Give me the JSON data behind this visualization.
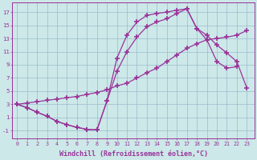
{
  "bg_color": "#cce8e8",
  "grid_color": "#99bbcc",
  "line_color": "#993399",
  "marker": "+",
  "markersize": 4,
  "markeredgewidth": 1.2,
  "linewidth": 0.9,
  "xlabel": "Windchill (Refroidissement éolien,°C)",
  "xlabel_fontsize": 6.0,
  "xtick_fontsize": 4.8,
  "ytick_fontsize": 5.2,
  "yticks": [
    -1,
    1,
    3,
    5,
    7,
    9,
    11,
    13,
    15,
    17
  ],
  "xticks": [
    0,
    1,
    2,
    3,
    4,
    5,
    6,
    7,
    8,
    9,
    10,
    11,
    12,
    13,
    14,
    15,
    16,
    17,
    18,
    19,
    20,
    21,
    22,
    23
  ],
  "xlim": [
    -0.5,
    23.8
  ],
  "ylim": [
    -2.2,
    18.5
  ],
  "line1_x": [
    0,
    1,
    2,
    3,
    4,
    5,
    6,
    7,
    8,
    9,
    10,
    11,
    12,
    13,
    14,
    15,
    16,
    17,
    18,
    19,
    20,
    21,
    22,
    23
  ],
  "line1_y": [
    3.0,
    3.2,
    3.4,
    3.6,
    3.8,
    4.0,
    4.2,
    4.5,
    4.8,
    5.2,
    5.8,
    6.2,
    7.0,
    7.8,
    8.5,
    9.5,
    10.5,
    11.5,
    12.2,
    12.8,
    13.0,
    13.2,
    13.5,
    14.2
  ],
  "line2_x": [
    0,
    1,
    2,
    3,
    4,
    5,
    6,
    7,
    8,
    9,
    10,
    11,
    12,
    13,
    14,
    15,
    16,
    17,
    18,
    19,
    20,
    21,
    22
  ],
  "line2_y": [
    3.0,
    2.5,
    1.8,
    1.2,
    0.4,
    -0.1,
    -0.5,
    -0.8,
    -0.9,
    3.5,
    10.0,
    13.5,
    15.5,
    16.5,
    16.8,
    17.0,
    17.3,
    17.5,
    14.5,
    12.8,
    9.5,
    8.5,
    8.7
  ],
  "line3_x": [
    0,
    1,
    2,
    3,
    4,
    5,
    6,
    7,
    8,
    9,
    10,
    11,
    12,
    13,
    14,
    15,
    16,
    17,
    18,
    19,
    20,
    21,
    22,
    23
  ],
  "line3_y": [
    3.0,
    2.5,
    1.8,
    1.2,
    0.4,
    -0.1,
    -0.5,
    -0.8,
    -0.9,
    3.5,
    8.0,
    11.0,
    13.2,
    14.8,
    15.5,
    16.0,
    16.8,
    17.5,
    14.5,
    13.5,
    12.0,
    10.8,
    9.5,
    5.5
  ]
}
